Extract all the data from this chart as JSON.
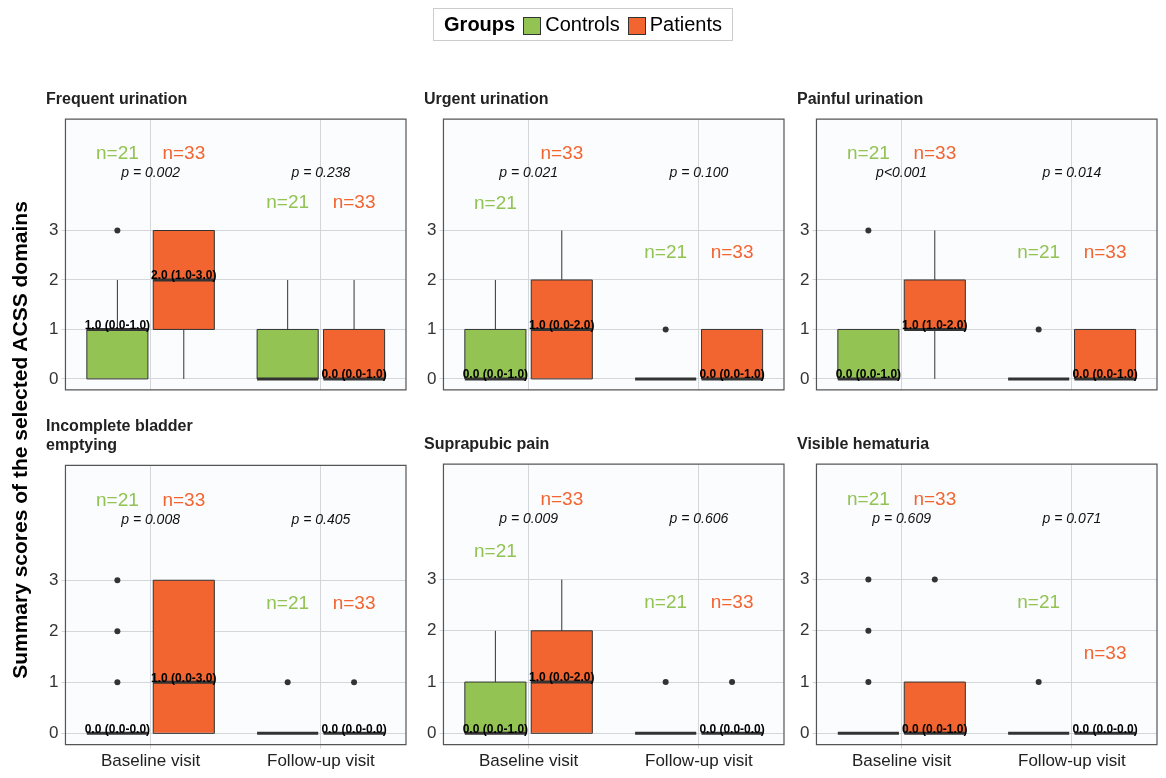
{
  "chart_data": [
    {
      "type": "box",
      "title": "Frequent urination",
      "ylabel": "Summary scores of the selected ACSS domains",
      "legend_title": "Groups",
      "legend": "top",
      "categories": [
        null,
        null
      ],
      "ylim": [
        -0.22,
        5.25
      ],
      "yticks": [
        0,
        1,
        2,
        3
      ],
      "grid": true,
      "tick_labels": "y",
      "series": [
        {
          "name": "Controls",
          "color": "#92c353",
          "boxes": [
            {
              "low": 0,
              "q1": 0,
              "median": 1,
              "q3": 1,
              "high": 2,
              "outliers": [
                3
              ]
            },
            {
              "low": 0,
              "q1": 0,
              "median": 0,
              "q3": 1,
              "high": 2
            }
          ],
          "value_labels": [
            "1.0 (0.0-1.0)",
            null
          ]
        },
        {
          "name": "Patients",
          "color": "#f26430",
          "boxes": [
            {
              "low": 0,
              "q1": 1,
              "median": 2,
              "q3": 3,
              "high": 3
            },
            {
              "low": 0,
              "q1": 0,
              "median": 0,
              "q3": 1,
              "high": 2
            }
          ],
          "value_labels": [
            "2.0 (1.0-3.0)",
            "0.0 (0.0-1.0)"
          ]
        }
      ],
      "annotations": [
        "n=21",
        "n=33",
        "p = 0.002",
        "n=21",
        "n=33",
        "p = 0.238"
      ]
    },
    {
      "type": "box",
      "title": "Urgent urination",
      "categories": [
        null,
        null
      ],
      "ylim": [
        -0.22,
        5.25
      ],
      "yticks": [
        0,
        1,
        2,
        3
      ],
      "grid": true,
      "tick_labels": "y",
      "series": [
        {
          "color": "#92c353",
          "boxes": [
            {
              "low": 0,
              "q1": 0,
              "median": 0,
              "q3": 1,
              "high": 2
            },
            {
              "low": 0,
              "q1": 0,
              "median": 0,
              "q3": 0,
              "high": 0,
              "outliers": [
                1
              ]
            }
          ],
          "value_labels": [
            "0.0 (0.0-1.0)",
            null
          ]
        },
        {
          "color": "#f26430",
          "boxes": [
            {
              "low": 0,
              "q1": 0,
              "median": 1,
              "q3": 2,
              "high": 3
            },
            {
              "low": 0,
              "q1": 0,
              "median": 0,
              "q3": 1,
              "high": 1
            }
          ],
          "value_labels": [
            "1.0 (0.0-2.0)",
            "0.0 (0.0-1.0)"
          ]
        }
      ],
      "annotations": [
        "n=21",
        "n=33",
        "p = 0.021",
        "n=21",
        "n=33",
        "p = 0.100"
      ]
    },
    {
      "type": "box",
      "title": "Painful urination",
      "categories": [
        null,
        null
      ],
      "ylim": [
        -0.22,
        5.25
      ],
      "yticks": [
        0,
        1,
        2,
        3
      ],
      "grid": true,
      "tick_labels": "y",
      "series": [
        {
          "color": "#92c353",
          "boxes": [
            {
              "low": 0,
              "q1": 0,
              "median": 0,
              "q3": 1,
              "high": 1,
              "outliers": [
                3
              ]
            },
            {
              "low": 0,
              "q1": 0,
              "median": 0,
              "q3": 0,
              "high": 0,
              "outliers": [
                1
              ]
            }
          ],
          "value_labels": [
            "0.0 (0.0-1.0)",
            null
          ]
        },
        {
          "color": "#f26430",
          "boxes": [
            {
              "low": 0,
              "q1": 1,
              "median": 1,
              "q3": 2,
              "high": 3
            },
            {
              "low": 0,
              "q1": 0,
              "median": 0,
              "q3": 1,
              "high": 1
            }
          ],
          "value_labels": [
            "1.0 (1.0-2.0)",
            "0.0 (0.0-1.0)"
          ]
        }
      ],
      "annotations": [
        "n=21",
        "n=33",
        "p<0.001",
        "n=21",
        "n=33",
        "p = 0.014"
      ]
    },
    {
      "type": "box",
      "title": "Incomplete bladder emptying",
      "categories": [
        "Baseline visit",
        "Follow-up visit"
      ],
      "ylim": [
        -0.22,
        5.25
      ],
      "yticks": [
        0,
        1,
        2,
        3
      ],
      "grid": true,
      "series": [
        {
          "color": "#92c353",
          "boxes": [
            {
              "low": 0,
              "q1": 0,
              "median": 0,
              "q3": 0,
              "high": 0,
              "outliers": [
                1,
                2,
                3
              ]
            },
            {
              "low": 0,
              "q1": 0,
              "median": 0,
              "q3": 0,
              "high": 0,
              "outliers": [
                1
              ]
            }
          ],
          "value_labels": [
            "0.0 (0.0-0.0)",
            null
          ]
        },
        {
          "color": "#f26430",
          "boxes": [
            {
              "low": 0,
              "q1": 0,
              "median": 1,
              "q3": 3,
              "high": 3
            },
            {
              "low": 0,
              "q1": 0,
              "median": 0,
              "q3": 0,
              "high": 0,
              "outliers": [
                1
              ]
            }
          ],
          "value_labels": [
            "1.0 (0.0-3.0)",
            "0.0 (0.0-0.0)"
          ]
        }
      ],
      "annotations": [
        "n=21",
        "n=33",
        "p = 0.008",
        "n=21",
        "n=33",
        "p = 0.405"
      ]
    },
    {
      "type": "box",
      "title": "Suprapubic pain",
      "categories": [
        "Baseline visit",
        "Follow-up visit"
      ],
      "ylim": [
        -0.22,
        5.25
      ],
      "yticks": [
        0,
        1,
        2,
        3
      ],
      "grid": true,
      "series": [
        {
          "color": "#92c353",
          "boxes": [
            {
              "low": 0,
              "q1": 0,
              "median": 0,
              "q3": 1,
              "high": 2
            },
            {
              "low": 0,
              "q1": 0,
              "median": 0,
              "q3": 0,
              "high": 0,
              "outliers": [
                1
              ]
            }
          ],
          "value_labels": [
            "0.0 (0.0-1.0)",
            null
          ]
        },
        {
          "color": "#f26430",
          "boxes": [
            {
              "low": 0,
              "q1": 0,
              "median": 1,
              "q3": 2,
              "high": 3
            },
            {
              "low": 0,
              "q1": 0,
              "median": 0,
              "q3": 0,
              "high": 0,
              "outliers": [
                1
              ]
            }
          ],
          "value_labels": [
            "1.0 (0.0-2.0)",
            "0.0 (0.0-0.0)"
          ]
        }
      ],
      "annotations": [
        "n=21",
        "n=33",
        "p = 0.009",
        "n=21",
        "n=33",
        "p = 0.606"
      ]
    },
    {
      "type": "box",
      "title": "Visible hematuria",
      "categories": [
        "Baseline visit",
        "Follow-up visit"
      ],
      "ylim": [
        -0.22,
        5.25
      ],
      "yticks": [
        0,
        1,
        2,
        3
      ],
      "grid": true,
      "series": [
        {
          "color": "#92c353",
          "boxes": [
            {
              "low": 0,
              "q1": 0,
              "median": 0,
              "q3": 0,
              "high": 0,
              "outliers": [
                1,
                2,
                3
              ]
            },
            {
              "low": 0,
              "q1": 0,
              "median": 0,
              "q3": 0,
              "high": 0,
              "outliers": [
                1
              ]
            }
          ],
          "value_labels": [
            null,
            null
          ]
        },
        {
          "color": "#f26430",
          "boxes": [
            {
              "low": 0,
              "q1": 0,
              "median": 0,
              "q3": 1,
              "high": 1,
              "outliers": [
                3
              ]
            },
            {
              "low": 0,
              "q1": 0,
              "median": 0,
              "q3": 0,
              "high": 0
            }
          ],
          "value_labels": [
            "0.0 (0.0-1.0)",
            "0.0 (0.0-0.0)"
          ]
        }
      ],
      "annotations": [
        "n=21",
        "n=33",
        "p = 0.609",
        "n=21",
        "n=33",
        "p = 0.071"
      ]
    }
  ]
}
